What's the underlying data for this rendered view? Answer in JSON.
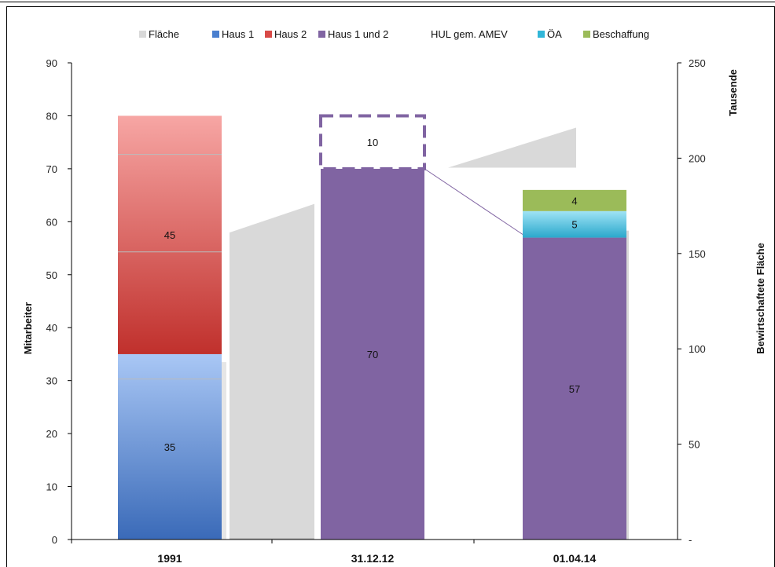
{
  "chart_data": {
    "type": "bar",
    "categories": [
      "1991",
      "31.12.12",
      "01.04.14"
    ],
    "legend": [
      "Fläche",
      "Haus 1",
      "Haus 2",
      "Haus 1 und 2",
      "HUL gem. AMEV",
      "ÖA",
      "Beschaffung"
    ],
    "series": [
      {
        "name": "Haus 1",
        "values": [
          35,
          0,
          0
        ],
        "color": "#4a7fcf"
      },
      {
        "name": "Haus 2",
        "values": [
          45,
          0,
          0
        ],
        "color": "#d84a47"
      },
      {
        "name": "Haus 1 und 2",
        "values": [
          0,
          70,
          57
        ],
        "color": "#8064a2"
      },
      {
        "name": "HUL gem. AMEV",
        "values": [
          0,
          10,
          0
        ],
        "color": "#ffffff",
        "border": "#8064a2"
      },
      {
        "name": "ÖA",
        "values": [
          0,
          0,
          5
        ],
        "color": "#31b6d8"
      },
      {
        "name": "Beschaffung",
        "values": [
          0,
          0,
          4
        ],
        "color": "#9bbb59"
      }
    ],
    "flaeche": {
      "name": "Fläche",
      "color": "#d9d9d9",
      "ranges_thousands": [
        [
          161,
          176
        ],
        [
          175,
          190
        ],
        [
          150,
          162
        ],
        [
          195,
          216
        ]
      ]
    },
    "ylabel": "Mitarbeiter",
    "y2label": "Bewirtschaftete Fläche",
    "y2unit": "Tausende",
    "ylim": [
      0,
      90
    ],
    "yticks": [
      "0",
      "10",
      "20",
      "30",
      "40",
      "50",
      "60",
      "70",
      "80",
      "90"
    ],
    "y2lim": [
      0,
      250
    ],
    "y2ticks": [
      "-",
      "50",
      "100",
      "150",
      "200",
      "250"
    ],
    "bar_labels": {
      "b0_h1": "35",
      "b0_h2": "45",
      "b1_main": "70",
      "b1_hul": "10",
      "b2_main": "57",
      "b2_oa": "5",
      "b2_besch": "4"
    },
    "grid": false,
    "legend_position": "top"
  }
}
